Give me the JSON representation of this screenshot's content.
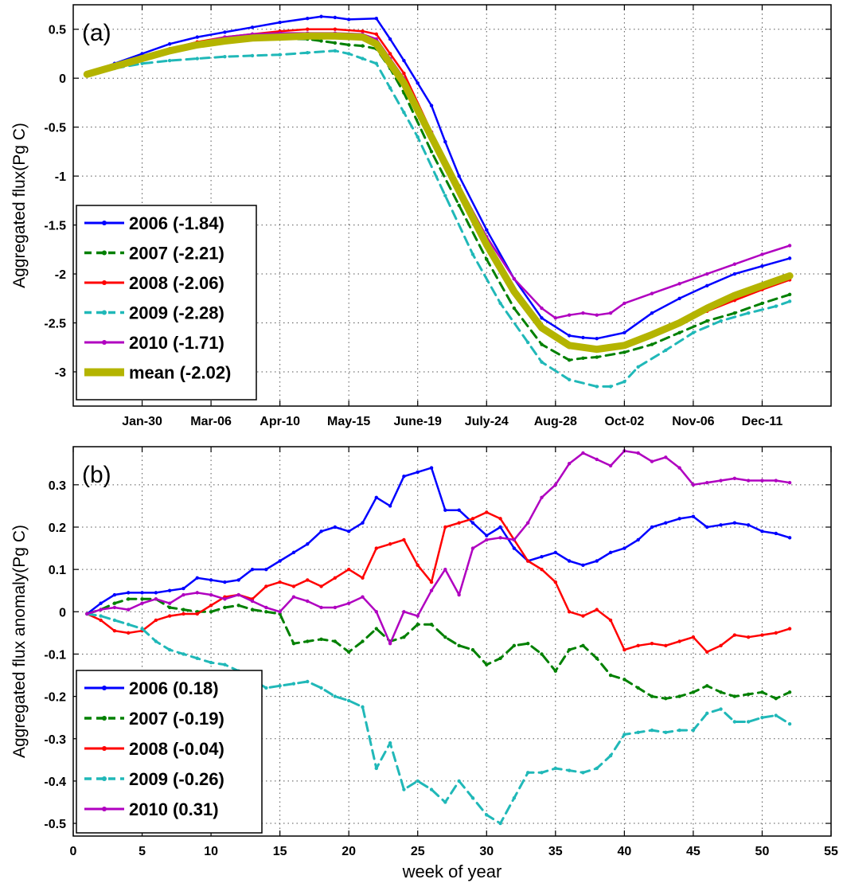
{
  "colors": {
    "s2006": "#0000ff",
    "s2007": "#008000",
    "s2008": "#ff0000",
    "s2009": "#20b8b8",
    "s2010": "#b000c0",
    "mean": "#b4b400",
    "grid": "#555555",
    "axis": "#000000"
  },
  "xaxis_title": "week of year",
  "chart_data": [
    {
      "type": "line",
      "panel_label": "(a)",
      "ylabel": "Aggregated flux(Pg C)",
      "xlabel": "",
      "xlim": [
        0,
        55
      ],
      "ylim": [
        -3.35,
        0.75
      ],
      "yticks": [
        -3,
        -2.5,
        -2,
        -1.5,
        -1,
        -0.5,
        0,
        0.5
      ],
      "ytick_labels": [
        "-3",
        "-2.5",
        "-2",
        "-1.5",
        "-1",
        "-0.5",
        "0",
        "0.5"
      ],
      "xticks": [
        5,
        10,
        15,
        20,
        25,
        30,
        35,
        40,
        45,
        50
      ],
      "xtick_labels": [
        "Jan-30",
        "Mar-06",
        "Apr-10",
        "May-15",
        "June-19",
        "July-24",
        "Aug-28",
        "Oct-02",
        "Nov-06",
        "Dec-11"
      ],
      "grid": true,
      "legend_position": "bottom-left",
      "series": [
        {
          "name": "2006 (-1.84)",
          "key": "s2006",
          "dash": "solid",
          "x": [
            1,
            3,
            5,
            7,
            9,
            11,
            13,
            15,
            17,
            18,
            19,
            20,
            22,
            23,
            24,
            25,
            26,
            27,
            28,
            30,
            32,
            34,
            36,
            37,
            38,
            40,
            42,
            44,
            46,
            48,
            50,
            52
          ],
          "y": [
            0.05,
            0.15,
            0.25,
            0.35,
            0.42,
            0.47,
            0.52,
            0.57,
            0.61,
            0.63,
            0.62,
            0.6,
            0.61,
            0.4,
            0.18,
            -0.05,
            -0.28,
            -0.65,
            -1.0,
            -1.55,
            -2.05,
            -2.45,
            -2.63,
            -2.65,
            -2.66,
            -2.6,
            -2.4,
            -2.25,
            -2.12,
            -2.0,
            -1.92,
            -1.84
          ]
        },
        {
          "name": "2007 (-2.21)",
          "key": "s2007",
          "dash": "dashed",
          "x": [
            1,
            3,
            5,
            7,
            9,
            11,
            13,
            15,
            17,
            18,
            19,
            20,
            21,
            22,
            23,
            24,
            26,
            28,
            30,
            32,
            34,
            36,
            37,
            38,
            40,
            42,
            44,
            46,
            48,
            50,
            52
          ],
          "y": [
            0.05,
            0.12,
            0.2,
            0.28,
            0.33,
            0.38,
            0.4,
            0.4,
            0.4,
            0.38,
            0.36,
            0.34,
            0.33,
            0.3,
            0.1,
            -0.15,
            -0.75,
            -1.3,
            -1.85,
            -2.35,
            -2.72,
            -2.88,
            -2.86,
            -2.85,
            -2.8,
            -2.72,
            -2.6,
            -2.48,
            -2.4,
            -2.3,
            -2.21
          ]
        },
        {
          "name": "2008 (-2.06)",
          "key": "s2008",
          "dash": "solid",
          "x": [
            1,
            3,
            5,
            7,
            9,
            11,
            13,
            15,
            17,
            19,
            21,
            22,
            23,
            24,
            26,
            28,
            30,
            32,
            34,
            36,
            38,
            40,
            42,
            44,
            46,
            48,
            50,
            52
          ],
          "y": [
            0.03,
            0.12,
            0.22,
            0.3,
            0.37,
            0.42,
            0.45,
            0.48,
            0.5,
            0.5,
            0.48,
            0.45,
            0.25,
            0.05,
            -0.55,
            -1.1,
            -1.65,
            -2.15,
            -2.55,
            -2.75,
            -2.78,
            -2.72,
            -2.62,
            -2.5,
            -2.38,
            -2.27,
            -2.16,
            -2.06
          ]
        },
        {
          "name": "2009 (-2.28)",
          "key": "s2009",
          "dash": "dashed",
          "x": [
            1,
            3,
            5,
            7,
            9,
            11,
            13,
            15,
            17,
            19,
            20,
            21,
            22,
            23,
            24,
            25,
            27,
            29,
            31,
            33,
            34,
            36,
            38,
            39,
            40,
            41,
            43,
            45,
            47,
            49,
            51,
            52
          ],
          "y": [
            0.05,
            0.1,
            0.15,
            0.18,
            0.2,
            0.22,
            0.23,
            0.24,
            0.26,
            0.28,
            0.25,
            0.2,
            0.15,
            -0.1,
            -0.35,
            -0.6,
            -1.2,
            -1.8,
            -2.3,
            -2.7,
            -2.9,
            -3.08,
            -3.15,
            -3.15,
            -3.1,
            -2.95,
            -2.78,
            -2.6,
            -2.48,
            -2.4,
            -2.33,
            -2.28
          ]
        },
        {
          "name": "2010 (-1.71)",
          "key": "s2010",
          "dash": "solid",
          "x": [
            1,
            3,
            5,
            7,
            9,
            11,
            13,
            15,
            17,
            19,
            21,
            22,
            23,
            24,
            26,
            28,
            30,
            32,
            34,
            35,
            36,
            37,
            38,
            39,
            40,
            42,
            44,
            46,
            48,
            50,
            52
          ],
          "y": [
            0.03,
            0.12,
            0.22,
            0.3,
            0.36,
            0.42,
            0.45,
            0.46,
            0.46,
            0.46,
            0.45,
            0.4,
            0.2,
            0.0,
            -0.55,
            -1.1,
            -1.62,
            -2.05,
            -2.35,
            -2.45,
            -2.42,
            -2.4,
            -2.42,
            -2.4,
            -2.3,
            -2.2,
            -2.1,
            -2.0,
            -1.9,
            -1.8,
            -1.71
          ]
        },
        {
          "name": "mean (-2.02)",
          "key": "mean",
          "dash": "thick",
          "x": [
            1,
            3,
            5,
            7,
            9,
            11,
            13,
            15,
            17,
            19,
            21,
            22,
            23,
            24,
            26,
            28,
            30,
            32,
            34,
            36,
            38,
            40,
            42,
            44,
            46,
            48,
            50,
            52
          ],
          "y": [
            0.04,
            0.12,
            0.2,
            0.28,
            0.34,
            0.38,
            0.41,
            0.42,
            0.43,
            0.43,
            0.42,
            0.35,
            0.15,
            -0.05,
            -0.6,
            -1.15,
            -1.7,
            -2.18,
            -2.55,
            -2.73,
            -2.77,
            -2.73,
            -2.62,
            -2.5,
            -2.35,
            -2.22,
            -2.12,
            -2.02
          ]
        }
      ]
    },
    {
      "type": "line",
      "panel_label": "(b)",
      "ylabel": "Aggregated flux anomaly(Pg C)",
      "xlabel": "week of year",
      "xlim": [
        0,
        55
      ],
      "ylim": [
        -0.53,
        0.39
      ],
      "yticks": [
        -0.5,
        -0.4,
        -0.3,
        -0.2,
        -0.1,
        0,
        0.1,
        0.2,
        0.3
      ],
      "ytick_labels": [
        "-0.5",
        "-0.4",
        "-0.3",
        "-0.2",
        "-0.1",
        "0",
        "0.1",
        "0.2",
        "0.3"
      ],
      "xticks": [
        0,
        5,
        10,
        15,
        20,
        25,
        30,
        35,
        40,
        45,
        50,
        55
      ],
      "xtick_labels": [
        "0",
        "5",
        "10",
        "15",
        "20",
        "25",
        "30",
        "35",
        "40",
        "45",
        "50",
        "55"
      ],
      "grid": true,
      "legend_position": "bottom-left",
      "series": [
        {
          "name": "2006 (0.18)",
          "key": "s2006",
          "dash": "solid",
          "x": [
            1,
            2,
            3,
            4,
            5,
            6,
            7,
            8,
            9,
            10,
            11,
            12,
            13,
            14,
            15,
            16,
            17,
            18,
            19,
            20,
            21,
            22,
            23,
            24,
            25,
            26,
            27,
            28,
            29,
            30,
            31,
            32,
            33,
            34,
            35,
            36,
            37,
            38,
            39,
            40,
            41,
            42,
            43,
            44,
            45,
            46,
            47,
            48,
            49,
            50,
            51,
            52
          ],
          "y": [
            -0.005,
            0.02,
            0.04,
            0.045,
            0.045,
            0.045,
            0.05,
            0.055,
            0.08,
            0.075,
            0.07,
            0.075,
            0.1,
            0.1,
            0.12,
            0.14,
            0.16,
            0.19,
            0.2,
            0.19,
            0.21,
            0.27,
            0.25,
            0.32,
            0.33,
            0.34,
            0.24,
            0.24,
            0.21,
            0.18,
            0.2,
            0.15,
            0.12,
            0.13,
            0.14,
            0.12,
            0.11,
            0.12,
            0.14,
            0.15,
            0.17,
            0.2,
            0.21,
            0.22,
            0.225,
            0.2,
            0.205,
            0.21,
            0.205,
            0.19,
            0.185,
            0.175
          ]
        },
        {
          "name": "2007 (-0.19)",
          "key": "s2007",
          "dash": "dashed",
          "x": [
            1,
            2,
            3,
            4,
            5,
            6,
            7,
            8,
            9,
            10,
            11,
            12,
            13,
            14,
            15,
            16,
            17,
            18,
            19,
            20,
            21,
            22,
            23,
            24,
            25,
            26,
            27,
            28,
            29,
            30,
            31,
            32,
            33,
            34,
            35,
            36,
            37,
            38,
            39,
            40,
            41,
            42,
            43,
            44,
            45,
            46,
            47,
            48,
            49,
            50,
            51,
            52
          ],
          "y": [
            -0.005,
            0.005,
            0.02,
            0.03,
            0.03,
            0.03,
            0.01,
            0.005,
            0.0,
            0.0,
            0.01,
            0.015,
            0.005,
            0.0,
            -0.005,
            -0.075,
            -0.07,
            -0.065,
            -0.07,
            -0.095,
            -0.07,
            -0.04,
            -0.07,
            -0.06,
            -0.03,
            -0.03,
            -0.06,
            -0.08,
            -0.09,
            -0.125,
            -0.11,
            -0.08,
            -0.075,
            -0.1,
            -0.14,
            -0.09,
            -0.08,
            -0.11,
            -0.15,
            -0.16,
            -0.18,
            -0.2,
            -0.205,
            -0.2,
            -0.19,
            -0.175,
            -0.19,
            -0.2,
            -0.195,
            -0.19,
            -0.205,
            -0.19
          ]
        },
        {
          "name": "2008 (-0.04)",
          "key": "s2008",
          "dash": "solid",
          "x": [
            1,
            2,
            3,
            4,
            5,
            6,
            7,
            8,
            9,
            10,
            11,
            12,
            13,
            14,
            15,
            16,
            17,
            18,
            19,
            20,
            21,
            22,
            23,
            24,
            25,
            26,
            27,
            28,
            29,
            30,
            31,
            32,
            33,
            34,
            35,
            36,
            37,
            38,
            39,
            40,
            41,
            42,
            43,
            44,
            45,
            46,
            47,
            48,
            49,
            50,
            51,
            52
          ],
          "y": [
            -0.005,
            -0.02,
            -0.045,
            -0.05,
            -0.045,
            -0.02,
            -0.01,
            -0.005,
            -0.005,
            0.015,
            0.035,
            0.04,
            0.03,
            0.06,
            0.07,
            0.06,
            0.075,
            0.06,
            0.08,
            0.1,
            0.08,
            0.15,
            0.16,
            0.17,
            0.11,
            0.07,
            0.2,
            0.21,
            0.22,
            0.235,
            0.22,
            0.17,
            0.12,
            0.1,
            0.07,
            0.0,
            -0.01,
            0.005,
            -0.02,
            -0.09,
            -0.08,
            -0.075,
            -0.08,
            -0.07,
            -0.06,
            -0.095,
            -0.08,
            -0.055,
            -0.06,
            -0.055,
            -0.05,
            -0.04
          ]
        },
        {
          "name": "2009 (-0.26)",
          "key": "s2009",
          "dash": "dashed",
          "x": [
            1,
            2,
            3,
            4,
            5,
            6,
            7,
            8,
            9,
            10,
            11,
            12,
            13,
            14,
            15,
            16,
            17,
            18,
            19,
            20,
            21,
            22,
            23,
            24,
            25,
            26,
            27,
            28,
            29,
            30,
            31,
            32,
            33,
            34,
            35,
            36,
            37,
            38,
            39,
            40,
            41,
            42,
            43,
            44,
            45,
            46,
            47,
            48,
            49,
            50,
            51,
            52
          ],
          "y": [
            -0.005,
            -0.01,
            -0.02,
            -0.03,
            -0.04,
            -0.07,
            -0.09,
            -0.1,
            -0.11,
            -0.12,
            -0.125,
            -0.14,
            -0.16,
            -0.18,
            -0.175,
            -0.17,
            -0.165,
            -0.18,
            -0.2,
            -0.21,
            -0.225,
            -0.37,
            -0.31,
            -0.42,
            -0.4,
            -0.42,
            -0.45,
            -0.4,
            -0.44,
            -0.48,
            -0.5,
            -0.44,
            -0.38,
            -0.38,
            -0.37,
            -0.375,
            -0.38,
            -0.37,
            -0.34,
            -0.29,
            -0.285,
            -0.28,
            -0.285,
            -0.28,
            -0.28,
            -0.24,
            -0.23,
            -0.26,
            -0.26,
            -0.25,
            -0.245,
            -0.265
          ]
        },
        {
          "name": "2010 (0.31)",
          "key": "s2010",
          "dash": "solid",
          "x": [
            1,
            2,
            3,
            4,
            5,
            6,
            7,
            8,
            9,
            10,
            11,
            12,
            13,
            14,
            15,
            16,
            17,
            18,
            19,
            20,
            21,
            22,
            23,
            24,
            25,
            26,
            27,
            28,
            29,
            30,
            31,
            32,
            33,
            34,
            35,
            36,
            37,
            38,
            39,
            40,
            41,
            42,
            43,
            44,
            45,
            46,
            47,
            48,
            49,
            50,
            51,
            52
          ],
          "y": [
            -0.005,
            0.005,
            0.01,
            0.005,
            0.02,
            0.03,
            0.02,
            0.04,
            0.045,
            0.04,
            0.03,
            0.04,
            0.025,
            0.01,
            0.0,
            0.035,
            0.025,
            0.01,
            0.01,
            0.02,
            0.035,
            0.0,
            -0.075,
            0.0,
            -0.01,
            0.05,
            0.1,
            0.04,
            0.15,
            0.17,
            0.175,
            0.17,
            0.21,
            0.27,
            0.3,
            0.35,
            0.375,
            0.36,
            0.345,
            0.38,
            0.375,
            0.355,
            0.365,
            0.34,
            0.3,
            0.305,
            0.31,
            0.315,
            0.31,
            0.31,
            0.31,
            0.305
          ]
        }
      ]
    }
  ]
}
